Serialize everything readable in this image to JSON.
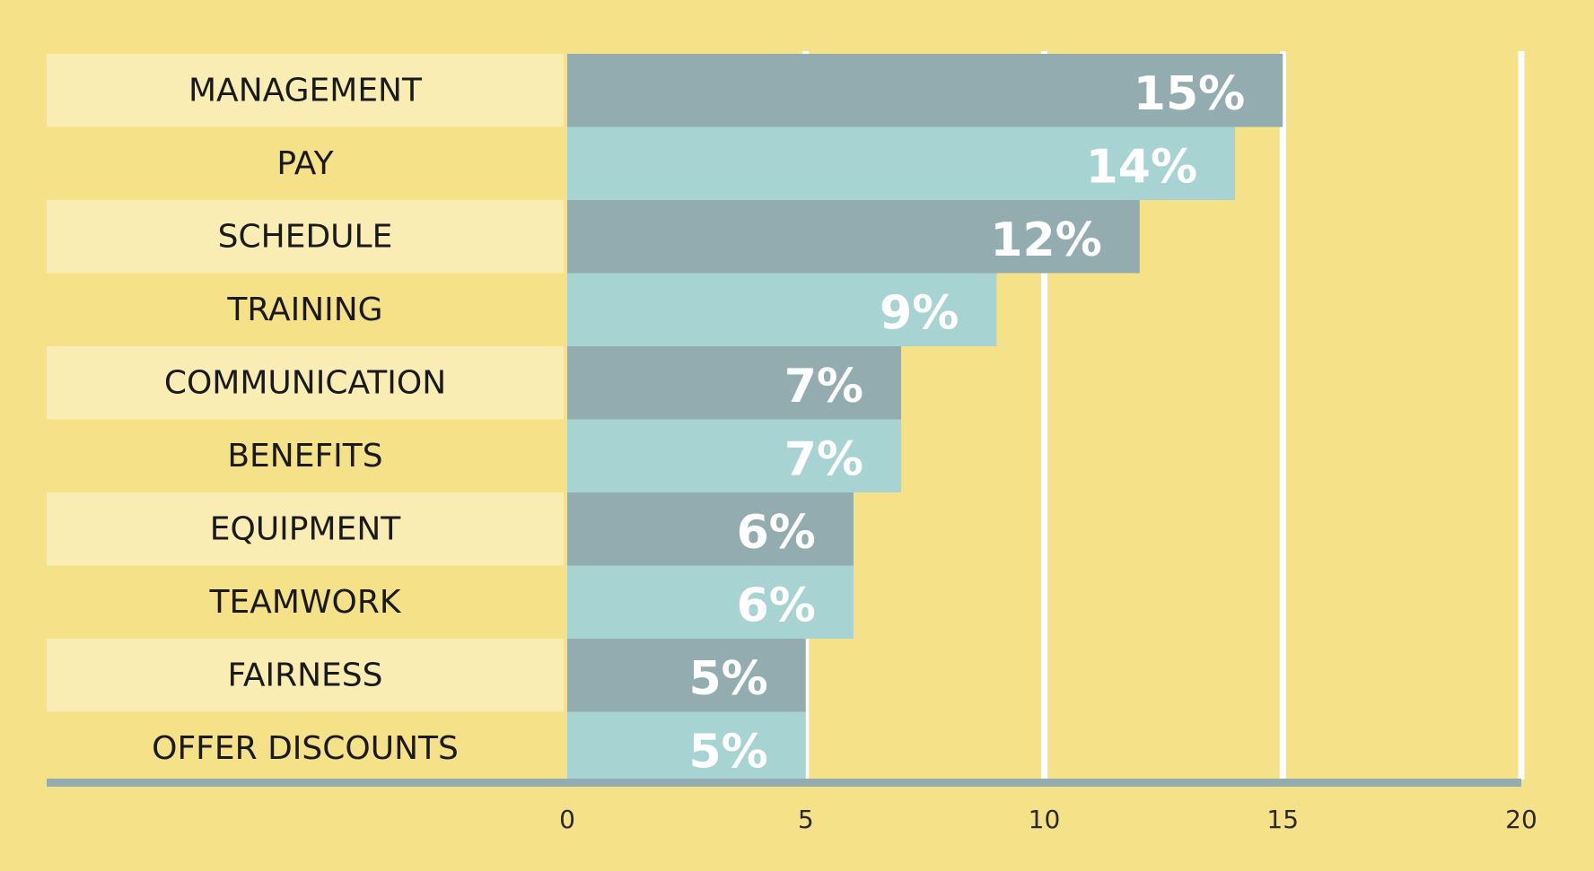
{
  "chart_data": {
    "type": "bar",
    "orientation": "horizontal",
    "title": "",
    "xlabel": "",
    "ylabel": "",
    "xlim": [
      0,
      20
    ],
    "xticks": [
      0,
      5,
      10,
      15,
      20
    ],
    "categories": [
      "MANAGEMENT",
      "PAY",
      "SCHEDULE",
      "TRAINING",
      "COMMUNICATION",
      "BENEFITS",
      "EQUIPMENT",
      "TEAMWORK",
      "FAIRNESS",
      "OFFER DISCOUNTS"
    ],
    "values": [
      15,
      14,
      12,
      9,
      7,
      7,
      6,
      6,
      5,
      5
    ],
    "value_labels": [
      "15%",
      "14%",
      "12%",
      "9%",
      "7%",
      "7%",
      "6%",
      "6%",
      "5%",
      "5%"
    ],
    "tick_labels": [
      "0",
      "5",
      "10",
      "15",
      "20"
    ],
    "grid": true,
    "legend": "none"
  },
  "colors": {
    "background": "#f5e187",
    "label_band_light": "#f9edb3",
    "label_band_dark": "#f5e187",
    "bar_dark": "#93acb0",
    "bar_light": "#a8d3d3",
    "axis": "#93acb0",
    "grid": "#ffffff",
    "value_text": "#ffffff"
  }
}
